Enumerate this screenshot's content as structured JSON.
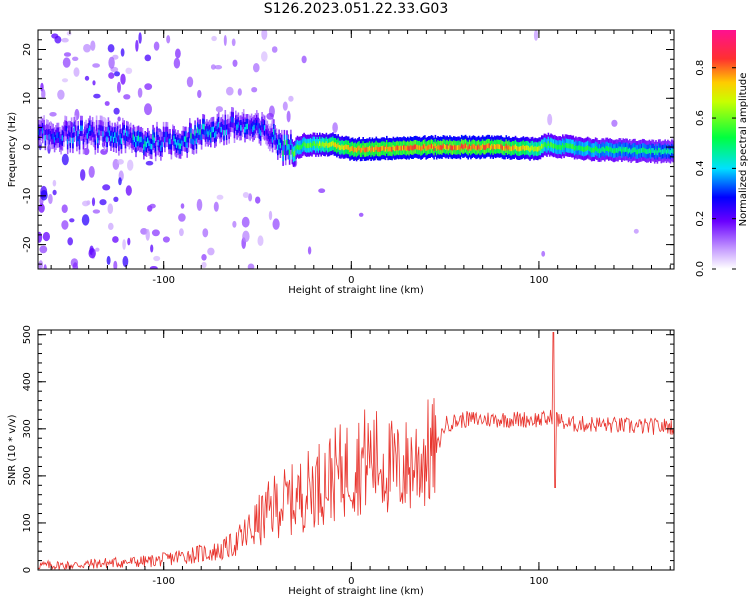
{
  "title": "S126.2023.051.22.33.G03",
  "chart_data": [
    {
      "type": "heatmap",
      "xlabel": "Height of straight line (km)",
      "ylabel": "Frequency (Hz)",
      "xlim": [
        -167,
        172
      ],
      "ylim": [
        -25,
        24
      ],
      "xticks": [
        -100,
        0,
        100
      ],
      "yticks": [
        -20,
        -10,
        0,
        10,
        20
      ],
      "colorbar": {
        "label": "Normalized spectral amplitude",
        "range": [
          0.0,
          0.95
        ],
        "ticks": [
          0.0,
          0.2,
          0.4,
          0.6,
          0.8
        ]
      },
      "ridge": {
        "description_points_x": [
          -150,
          -130,
          -110,
          -90,
          -75,
          -60,
          -45,
          -35,
          -25,
          -10,
          0,
          20,
          50,
          80,
          100,
          102,
          130,
          170
        ],
        "description_points_y": [
          2.5,
          2.5,
          1.0,
          1.5,
          3.5,
          4.5,
          3.0,
          -0.5,
          0.5,
          0.5,
          -0.5,
          -0.2,
          0.0,
          0.0,
          -0.5,
          0.5,
          -0.5,
          -1.0
        ],
        "peak_amplitude": [
          0.35,
          0.35,
          0.45,
          0.45,
          0.4,
          0.4,
          0.35,
          0.5,
          0.6,
          0.75,
          0.8,
          0.85,
          0.85,
          0.85,
          0.7,
          0.6,
          0.55,
          0.5
        ]
      }
    },
    {
      "type": "line",
      "xlabel": "Height of straight line (km)",
      "ylabel": "SNR (10 * v/v)",
      "xlim": [
        -167,
        172
      ],
      "ylim": [
        0,
        510
      ],
      "xticks": [
        -100,
        0,
        100
      ],
      "yticks": [
        0,
        100,
        200,
        300,
        400,
        500
      ],
      "color": "#e8332c",
      "series": [
        {
          "x": [
            -167,
            -150,
            -130,
            -110,
            -100,
            -90,
            -80,
            -70,
            -60,
            -50,
            -40,
            -30,
            -20,
            -10,
            0,
            10,
            20,
            25,
            30,
            40,
            45,
            50,
            60,
            70,
            80,
            90,
            100,
            105,
            108,
            110,
            115,
            120,
            130,
            150,
            172
          ],
          "y": [
            10,
            10,
            15,
            18,
            22,
            30,
            35,
            40,
            60,
            100,
            140,
            150,
            180,
            200,
            220,
            240,
            220,
            210,
            220,
            245,
            250,
            310,
            320,
            320,
            320,
            320,
            320,
            320,
            330,
            320,
            310,
            310,
            310,
            305,
            305
          ]
        }
      ]
    }
  ]
}
